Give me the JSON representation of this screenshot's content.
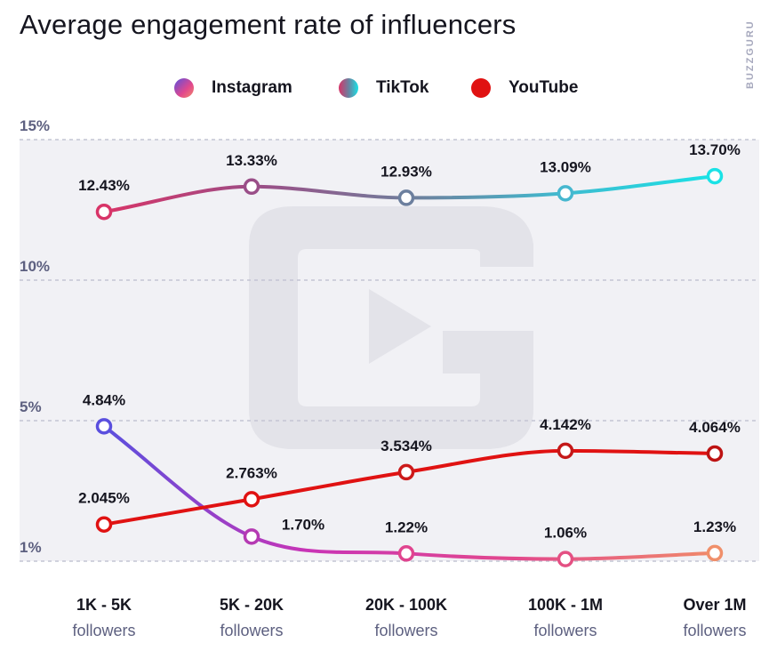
{
  "title": "Average engagement rate of influencers",
  "brand": "BUZZGURU",
  "chart_data": {
    "type": "line",
    "title": "Average engagement rate of influencers",
    "categories": [
      {
        "line1": "1K - 5K",
        "line2": "followers"
      },
      {
        "line1": "5K - 20K",
        "line2": "followers"
      },
      {
        "line1": "20K - 100K",
        "line2": "followers"
      },
      {
        "line1": "100K - 1M",
        "line2": "followers"
      },
      {
        "line1": "Over 1M",
        "line2": "followers"
      }
    ],
    "y_ticks": [
      "15%",
      "10%",
      "5%",
      "1%"
    ],
    "y_tick_values": [
      15,
      10,
      5,
      1
    ],
    "ylim": [
      1,
      15
    ],
    "grid": true,
    "legend_position": "top-center",
    "series": [
      {
        "name": "Instagram",
        "values": [
          4.84,
          1.7,
          1.22,
          1.06,
          1.23
        ],
        "labels": [
          "4.84%",
          "1.70%",
          "1.22%",
          "1.06%",
          "1.23%"
        ],
        "gradient": [
          "#5a4fde",
          "#c934b6",
          "#e2488d",
          "#f08a6a"
        ],
        "point_colors": [
          "#5a4fde",
          "#b53ab3",
          "#e0448f",
          "#e45083",
          "#f08f6a"
        ]
      },
      {
        "name": "TikTok",
        "values": [
          12.43,
          13.33,
          12.93,
          13.09,
          13.7
        ],
        "labels": [
          "12.43%",
          "13.33%",
          "12.93%",
          "13.09%",
          "13.70%"
        ],
        "gradient": [
          "#d83468",
          "#9c4d86",
          "#707e9c",
          "#3fbacf",
          "#1ae2e6"
        ],
        "point_colors": [
          "#d83468",
          "#9a4e88",
          "#6c7f9e",
          "#46b7cf",
          "#1ae2e6"
        ]
      },
      {
        "name": "YouTube",
        "values": [
          2.045,
          2.763,
          3.534,
          4.142,
          4.064
        ],
        "labels": [
          "2.045%",
          "2.763%",
          "3.534%",
          "4.142%",
          "4.064%"
        ],
        "color": "#e01212",
        "point_colors": [
          "#e01212",
          "#e01212",
          "#cc1a1a",
          "#c41818",
          "#bd1212"
        ]
      }
    ]
  }
}
